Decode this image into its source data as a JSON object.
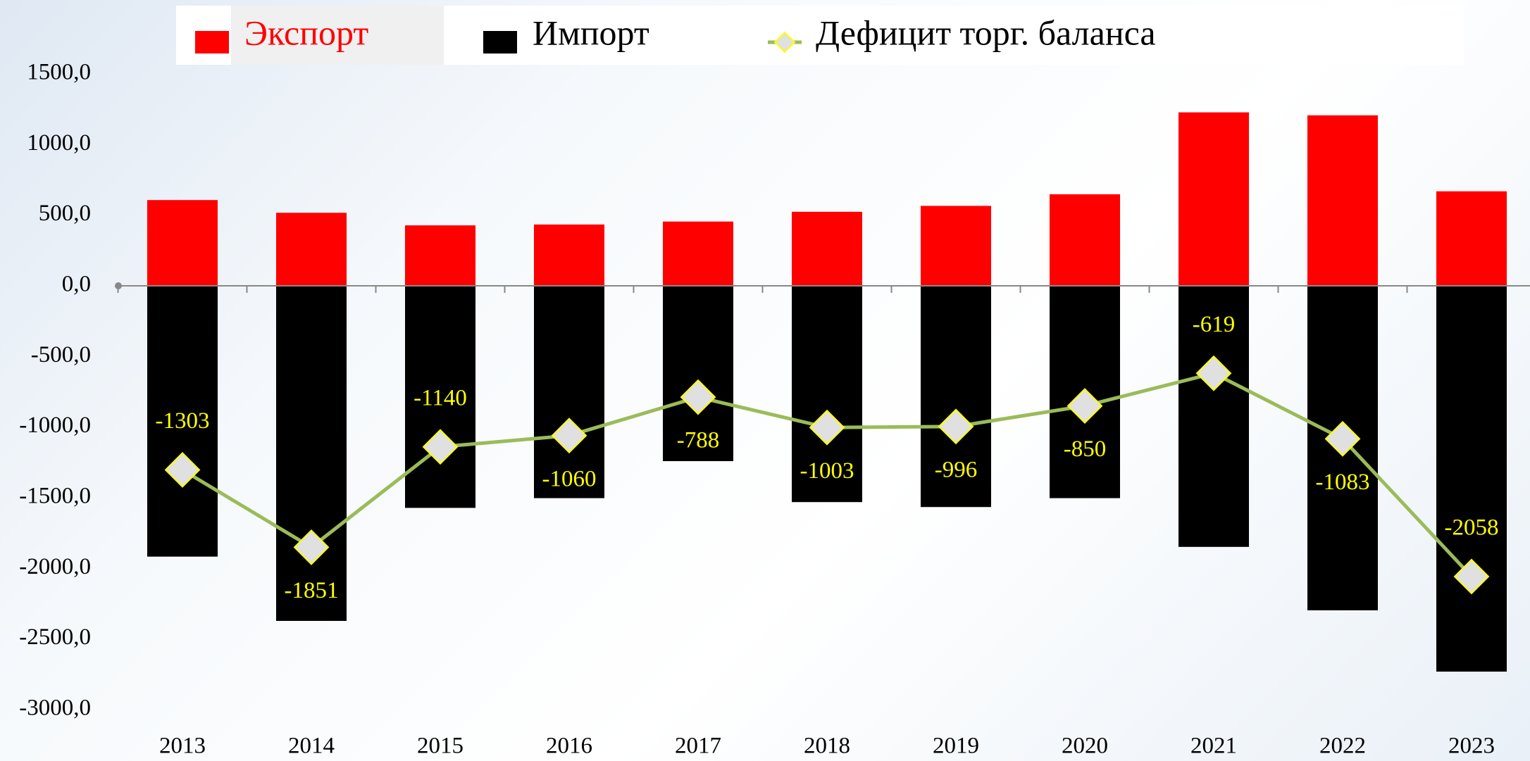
{
  "chart_data": {
    "type": "bar-line",
    "categories": [
      "2013",
      "2014",
      "2015",
      "2016",
      "2017",
      "2018",
      "2019",
      "2020",
      "2021",
      "2022",
      "2023"
    ],
    "series": [
      {
        "name": "Экспорт",
        "color": "#ff0000",
        "values": [
          607,
          517,
          428,
          434,
          455,
          524,
          566,
          648,
          1228,
          1207,
          669
        ]
      },
      {
        "name": "Импорт",
        "color": "#000000",
        "values": [
          -1917,
          -2372,
          -1572,
          -1503,
          -1241,
          -1531,
          -1566,
          -1503,
          -1848,
          -2297,
          -2731
        ]
      },
      {
        "name": "Дефицит торг. баланса",
        "color": "#9bbb59",
        "type": "line",
        "values": [
          -1303,
          -1851,
          -1140,
          -1060,
          -788,
          -1003,
          -996,
          -850,
          -619,
          -1083,
          -2058
        ]
      }
    ],
    "ylim": [
      -3000,
      1500
    ],
    "yticks": [
      {
        "value": -3000,
        "label": "-3000,0"
      },
      {
        "value": -2500,
        "label": "-2500,0"
      },
      {
        "value": -2000,
        "label": "-2000,0"
      },
      {
        "value": -1500,
        "label": "-1500,0"
      },
      {
        "value": -1000,
        "label": "-1000,0"
      },
      {
        "value": -500,
        "label": "-500,0"
      },
      {
        "value": 0,
        "label": "0,0"
      },
      {
        "value": 500,
        "label": "500,0"
      },
      {
        "value": 1000,
        "label": "1000,0"
      },
      {
        "value": 1500,
        "label": "1500,0"
      }
    ]
  }
}
